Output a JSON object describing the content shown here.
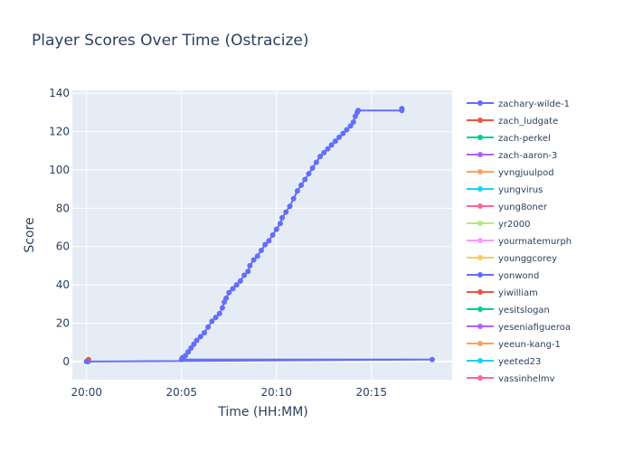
{
  "chart_data": {
    "type": "line",
    "title": "Player Scores Over Time (Ostracize)",
    "xlabel": "Time (HH:MM)",
    "ylabel": "Score",
    "x_unit": "minutes past 20:00",
    "xlim": [
      -0.75,
      19.25
    ],
    "ylim": [
      -9.5,
      141.5
    ],
    "x_ticks": [
      {
        "value": 0,
        "label": "20:00"
      },
      {
        "value": 5,
        "label": "20:05"
      },
      {
        "value": 10,
        "label": "20:10"
      },
      {
        "value": 15,
        "label": "20:15"
      }
    ],
    "y_ticks": [
      0,
      20,
      40,
      60,
      80,
      100,
      120,
      140
    ],
    "grid": true,
    "legend_position": "right",
    "plot_background": "#e5ecf6",
    "series": [
      {
        "name": "zachary-wilde-1",
        "color": "#636efa",
        "points": [
          [
            0.0,
            0
          ],
          [
            18.2,
            1
          ],
          [
            5.0,
            1
          ],
          [
            5.05,
            2
          ],
          [
            5.2,
            3
          ],
          [
            5.35,
            5
          ],
          [
            5.5,
            7
          ],
          [
            5.65,
            9
          ],
          [
            5.8,
            11
          ],
          [
            6.0,
            13
          ],
          [
            6.2,
            15
          ],
          [
            6.4,
            18
          ],
          [
            6.6,
            21
          ],
          [
            6.8,
            23
          ],
          [
            7.0,
            25
          ],
          [
            7.15,
            28
          ],
          [
            7.25,
            31
          ],
          [
            7.35,
            33
          ],
          [
            7.5,
            36
          ],
          [
            7.7,
            38
          ],
          [
            7.9,
            40
          ],
          [
            8.1,
            42
          ],
          [
            8.3,
            45
          ],
          [
            8.5,
            47
          ],
          [
            8.6,
            50
          ],
          [
            8.8,
            53
          ],
          [
            9.0,
            55
          ],
          [
            9.2,
            58
          ],
          [
            9.4,
            61
          ],
          [
            9.6,
            63
          ],
          [
            9.8,
            66
          ],
          [
            10.0,
            69
          ],
          [
            10.2,
            72
          ],
          [
            10.3,
            75
          ],
          [
            10.5,
            78
          ],
          [
            10.7,
            81
          ],
          [
            10.9,
            85
          ],
          [
            11.1,
            89
          ],
          [
            11.3,
            92
          ],
          [
            11.5,
            95
          ],
          [
            11.7,
            98
          ],
          [
            11.9,
            101
          ],
          [
            12.1,
            104
          ],
          [
            12.3,
            107
          ],
          [
            12.5,
            109
          ],
          [
            12.7,
            111
          ],
          [
            12.9,
            113
          ],
          [
            13.1,
            115
          ],
          [
            13.3,
            117
          ],
          [
            13.5,
            119
          ],
          [
            13.7,
            121
          ],
          [
            13.9,
            123
          ],
          [
            14.05,
            125
          ],
          [
            14.15,
            128
          ],
          [
            14.25,
            130
          ],
          [
            14.3,
            131
          ],
          [
            16.6,
            131
          ],
          [
            16.6,
            132
          ]
        ]
      },
      {
        "name": "zach_ludgate",
        "color": "#EF553B",
        "points": [
          [
            0.1,
            1
          ]
        ]
      },
      {
        "name": "zach-perkel",
        "color": "#00cc96",
        "points": [
          [
            0.05,
            0
          ]
        ]
      },
      {
        "name": "zach-aaron-3",
        "color": "#ab63fa",
        "points": [
          [
            0.08,
            0
          ]
        ]
      },
      {
        "name": "yvngjuulpod",
        "color": "#FFA15A",
        "points": [
          [
            0.0,
            0
          ]
        ]
      },
      {
        "name": "yungvirus",
        "color": "#19d3f3",
        "points": [
          [
            0.06,
            0
          ]
        ]
      },
      {
        "name": "yung8oner",
        "color": "#FF6692",
        "points": [
          [
            0.04,
            0
          ]
        ]
      },
      {
        "name": "yr2000",
        "color": "#B6E880",
        "points": [
          [
            0.03,
            0
          ]
        ]
      },
      {
        "name": "yourmatemurph",
        "color": "#FF97FF",
        "points": [
          [
            0.02,
            0
          ]
        ]
      },
      {
        "name": "younggcorey",
        "color": "#FECB52",
        "points": [
          [
            0.0,
            0
          ]
        ]
      },
      {
        "name": "yonwond",
        "color": "#636efa",
        "points": [
          [
            0.07,
            0
          ]
        ]
      },
      {
        "name": "yiwilliam",
        "color": "#EF553B",
        "points": [
          [
            0.09,
            0
          ]
        ]
      },
      {
        "name": "yesitslogan",
        "color": "#00cc96",
        "points": [
          [
            0.01,
            0
          ]
        ]
      },
      {
        "name": "yeseniafigueroa",
        "color": "#ab63fa",
        "points": [
          [
            0.05,
            0
          ]
        ]
      },
      {
        "name": "yeeun-kang-1",
        "color": "#FFA15A",
        "points": [
          [
            0.03,
            0
          ]
        ]
      },
      {
        "name": "yeeted23",
        "color": "#19d3f3",
        "points": [
          [
            0.04,
            0
          ]
        ]
      },
      {
        "name": "yassinhelmy",
        "color": "#FF6692",
        "points": [
          [
            0.02,
            0
          ]
        ]
      }
    ]
  }
}
